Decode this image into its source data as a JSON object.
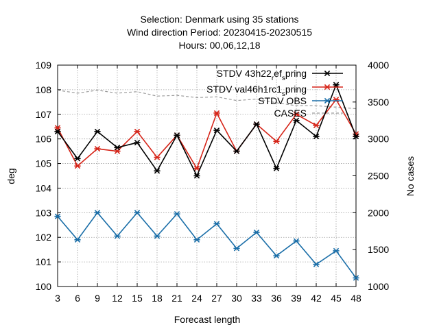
{
  "chart_data": {
    "type": "line",
    "title_lines": [
      "Selection: Denmark using    35 stations",
      "Wind direction   Period: 20230415-20230515",
      "Hours:  00,06,12,18"
    ],
    "xlabel": "Forecast length",
    "ylabel": "deg",
    "y2label": "No cases",
    "x": [
      3,
      6,
      9,
      12,
      15,
      18,
      21,
      24,
      27,
      30,
      33,
      36,
      39,
      42,
      45,
      48
    ],
    "ylim": [
      100,
      109
    ],
    "y2lim": [
      1000,
      4000
    ],
    "yticks": [
      100,
      101,
      102,
      103,
      104,
      105,
      106,
      107,
      108,
      109
    ],
    "y2ticks": [
      1000,
      1500,
      2000,
      2500,
      3000,
      3500,
      4000
    ],
    "grid": true,
    "legend_position": "top-right",
    "series": [
      {
        "name": "STDV 43h22_ref_spring",
        "label_main": "STDV 43h22",
        "label_sub1": "r",
        "label_mid": "ef",
        "label_sub2": "s",
        "label_end": "pring",
        "color": "#000000",
        "axis": "y",
        "marker": "star",
        "values": [
          106.3,
          105.2,
          106.3,
          105.65,
          105.85,
          104.7,
          106.15,
          104.5,
          106.35,
          105.5,
          106.6,
          104.8,
          106.75,
          106.1,
          108.2,
          106.1
        ]
      },
      {
        "name": "STDV val46h1rc1_spring",
        "label_main": "STDV val46h1rc1",
        "label_sub1": "s",
        "label_end": "pring",
        "color": "#d62418",
        "axis": "y",
        "marker": "star",
        "values": [
          106.45,
          104.9,
          105.6,
          105.5,
          106.3,
          105.25,
          106.15,
          104.8,
          107.05,
          105.5,
          106.6,
          105.9,
          107.0,
          106.55,
          107.6,
          106.2
        ]
      },
      {
        "name": "STDV OBS",
        "color": "#1a6ea8",
        "axis": "y",
        "marker": "star",
        "values": [
          102.85,
          101.9,
          103.0,
          102.05,
          103.0,
          102.05,
          102.95,
          101.9,
          102.55,
          101.55,
          102.2,
          101.25,
          101.85,
          100.9,
          101.45,
          100.35
        ]
      },
      {
        "name": "CASES",
        "color": "#9a9a9a",
        "axis": "y2",
        "marker": "none",
        "dashed": true,
        "values": [
          3660,
          3620,
          3660,
          3620,
          3640,
          3580,
          3590,
          3560,
          3570,
          3520,
          3540,
          3490,
          3450,
          3450,
          3430,
          3410
        ]
      }
    ]
  }
}
